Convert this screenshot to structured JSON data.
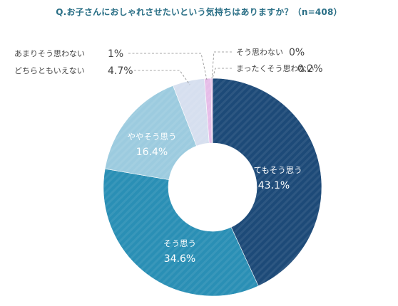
{
  "title": "Q.お子さんにおしゃれさせたいという気持ちはありますか？（n=408）",
  "chart_data": {
    "type": "pie",
    "donut": true,
    "title": "Q.お子さんにおしゃれさせたいという気持ちはありますか？（n=408）",
    "unit": "%",
    "series": [
      {
        "label": "とてもそう思う",
        "value": 43.1,
        "value_label": "43.1%",
        "color": "#1d4a78"
      },
      {
        "label": "そう思う",
        "value": 34.6,
        "value_label": "34.6%",
        "color": "#2a8fb5"
      },
      {
        "label": "ややそう思う",
        "value": 16.4,
        "value_label": "16.4%",
        "color": "#9ccbdf"
      },
      {
        "label": "どちらともいえない",
        "value": 4.7,
        "value_label": "4.7%",
        "color": "#d6dfef"
      },
      {
        "label": "あまりそう思わない",
        "value": 1,
        "value_label": "1%",
        "color": "#e6bde8"
      },
      {
        "label": "まったくそう思わない",
        "value": 0.2,
        "value_label": "0.2%",
        "color": "#d7a5da"
      },
      {
        "label": "そう思わない",
        "value": 0,
        "value_label": "0%",
        "color": "#c8a0d8"
      }
    ]
  }
}
